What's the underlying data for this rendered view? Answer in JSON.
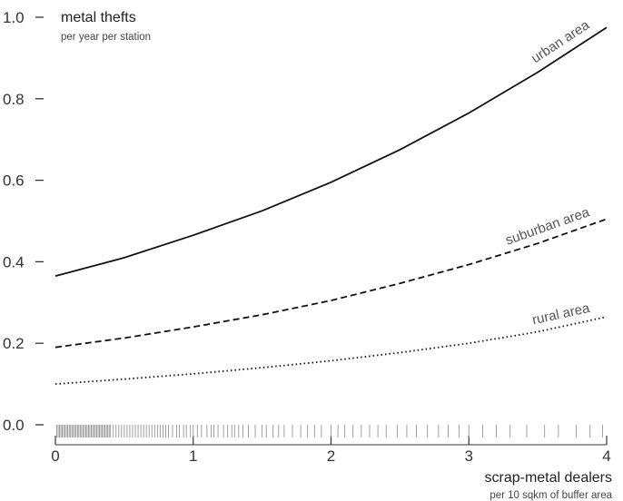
{
  "chart_data": {
    "type": "line",
    "title": "metal thefts",
    "subtitle": "per year per station",
    "xlabel": "scrap-metal dealers",
    "xlabel_sub": "per 10 sqkm of buffer area",
    "xlim": [
      0,
      4
    ],
    "ylim": [
      0,
      1.0
    ],
    "x_ticks": [
      0,
      1,
      2,
      3,
      4
    ],
    "x_tick_labels": [
      "0",
      "1",
      "2",
      "3",
      "4"
    ],
    "y_ticks": [
      0,
      0.2,
      0.4,
      0.6,
      0.8,
      1.0
    ],
    "y_tick_labels": [
      "0.0",
      "0.2",
      "0.4",
      "0.6",
      "0.8",
      "1.0"
    ],
    "grid": false,
    "legend": "none",
    "series": [
      {
        "name": "urban area",
        "style": "solid",
        "x": [
          0,
          0.5,
          1,
          1.5,
          2,
          2.5,
          3,
          3.5,
          4
        ],
        "y": [
          0.365,
          0.41,
          0.465,
          0.525,
          0.595,
          0.675,
          0.765,
          0.865,
          0.975
        ]
      },
      {
        "name": "suburban area",
        "style": "dashed",
        "x": [
          0,
          0.5,
          1,
          1.5,
          2,
          2.5,
          3,
          3.5,
          4
        ],
        "y": [
          0.19,
          0.213,
          0.24,
          0.27,
          0.305,
          0.347,
          0.393,
          0.445,
          0.505
        ]
      },
      {
        "name": "rural area",
        "style": "dotted",
        "x": [
          0,
          0.5,
          1,
          1.5,
          2,
          2.5,
          3,
          3.5,
          4
        ],
        "y": [
          0.1,
          0.112,
          0.125,
          0.14,
          0.157,
          0.177,
          0.2,
          0.228,
          0.265
        ]
      }
    ],
    "rug_x": [
      0.01,
      0.02,
      0.03,
      0.04,
      0.05,
      0.06,
      0.07,
      0.08,
      0.09,
      0.1,
      0.11,
      0.12,
      0.13,
      0.14,
      0.15,
      0.16,
      0.17,
      0.18,
      0.19,
      0.2,
      0.21,
      0.22,
      0.23,
      0.24,
      0.25,
      0.26,
      0.27,
      0.28,
      0.29,
      0.3,
      0.31,
      0.32,
      0.33,
      0.34,
      0.35,
      0.36,
      0.37,
      0.38,
      0.39,
      0.4,
      0.42,
      0.44,
      0.46,
      0.48,
      0.5,
      0.52,
      0.54,
      0.56,
      0.58,
      0.6,
      0.62,
      0.64,
      0.66,
      0.68,
      0.7,
      0.72,
      0.74,
      0.76,
      0.78,
      0.8,
      0.82,
      0.85,
      0.88,
      0.9,
      0.93,
      0.95,
      0.98,
      1.0,
      1.03,
      1.06,
      1.1,
      1.13,
      1.15,
      1.18,
      1.22,
      1.25,
      1.28,
      1.3,
      1.33,
      1.36,
      1.4,
      1.45,
      1.5,
      1.53,
      1.58,
      1.62,
      1.66,
      1.72,
      1.78,
      1.83,
      1.88,
      1.93,
      2.0,
      2.05,
      2.1,
      2.16,
      2.22,
      2.28,
      2.34,
      2.4,
      2.48,
      2.55,
      2.62,
      2.7,
      2.78,
      2.85,
      2.93,
      3.0,
      3.1,
      3.2,
      3.3,
      3.42,
      3.55,
      3.65,
      3.78,
      3.88,
      3.97
    ]
  }
}
